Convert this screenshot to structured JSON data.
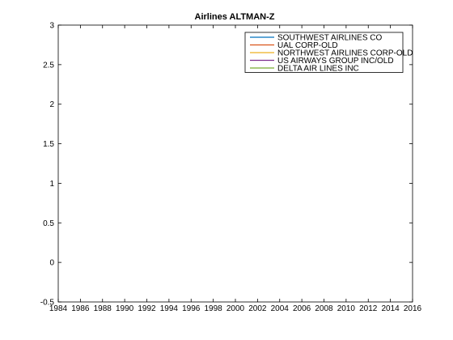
{
  "chart_data": {
    "type": "line",
    "title": "Airlines ALTMAN-Z",
    "xlabel": "",
    "ylabel": "",
    "xlim": [
      1984,
      2016
    ],
    "ylim": [
      -0.5,
      3
    ],
    "xticks": [
      1984,
      1986,
      1988,
      1990,
      1992,
      1994,
      1996,
      1998,
      2000,
      2002,
      2004,
      2006,
      2008,
      2010,
      2012,
      2014,
      2016
    ],
    "yticks": [
      -0.5,
      0,
      0.5,
      1,
      1.5,
      2,
      2.5,
      3
    ],
    "ytick_labels": [
      "-0.5",
      "0",
      "0.5",
      "1",
      "1.5",
      "2",
      "2.5",
      "3"
    ],
    "grid": false,
    "legend_position": "top-right",
    "series": [
      {
        "name": "SOUTHWEST AIRLINES CO",
        "color": "#0072BD",
        "x": [],
        "y": []
      },
      {
        "name": "UAL CORP-OLD",
        "color": "#D95319",
        "x": [],
        "y": []
      },
      {
        "name": "NORTHWEST AIRLINES CORP-OLD",
        "color": "#EDB120",
        "x": [],
        "y": []
      },
      {
        "name": "US AIRWAYS GROUP INC/OLD",
        "color": "#7E2F8E",
        "x": [],
        "y": []
      },
      {
        "name": "DELTA AIR LINES INC",
        "color": "#77AC30",
        "x": [],
        "y": []
      }
    ]
  }
}
